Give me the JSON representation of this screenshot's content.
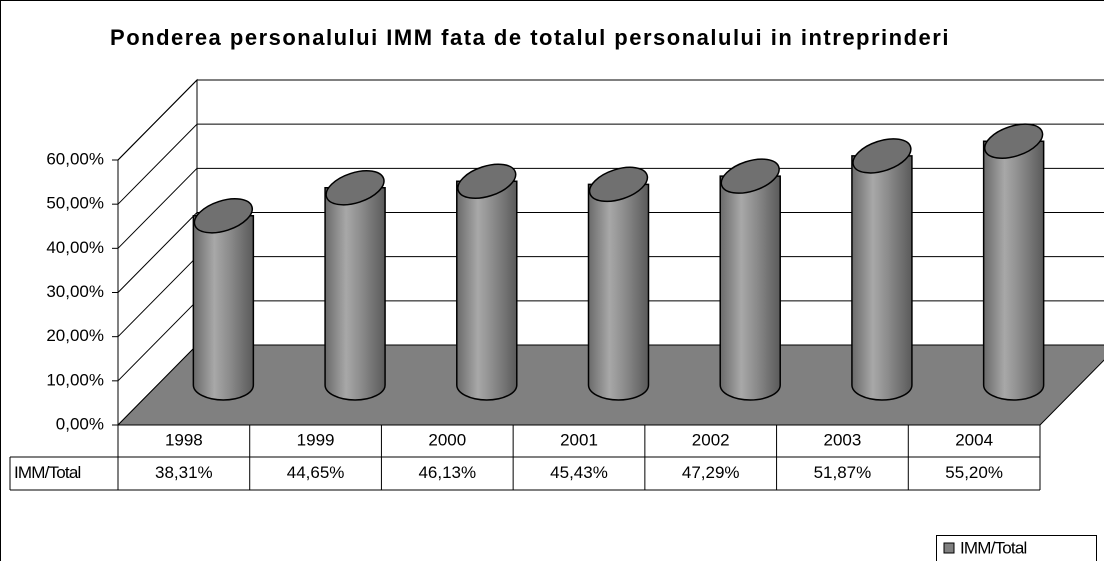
{
  "chart_data": {
    "type": "bar",
    "title": "Ponderea personalului IMM fata de totalul personalului in intreprinderi",
    "categories": [
      "1998",
      "1999",
      "2000",
      "2001",
      "2002",
      "2003",
      "2004"
    ],
    "series": [
      {
        "name": "IMM/Total",
        "color": "#808080",
        "values": [
          38.31,
          44.65,
          46.13,
          45.43,
          47.29,
          51.87,
          55.2
        ],
        "value_labels": [
          "38,31%",
          "44,65%",
          "46,13%",
          "45,43%",
          "47,29%",
          "51,87%",
          "55,20%"
        ]
      }
    ],
    "ylim": [
      0,
      60
    ],
    "yticks": [
      {
        "value": 0,
        "label": "0,00%"
      },
      {
        "value": 10,
        "label": "10,00%"
      },
      {
        "value": 20,
        "label": "20,00%"
      },
      {
        "value": 30,
        "label": "30,00%"
      },
      {
        "value": 40,
        "label": "40,00%"
      },
      {
        "value": 50,
        "label": "50,00%"
      },
      {
        "value": 60,
        "label": "60,00%"
      }
    ],
    "grid": true,
    "legend": "bottom-right"
  }
}
